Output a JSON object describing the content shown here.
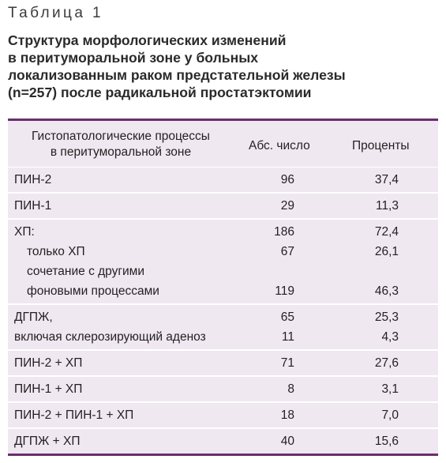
{
  "caption": "Таблица 1",
  "title_lines": [
    "Структура морфологических изменений",
    "в перитуморальной зоне у больных",
    "локализованным раком предстательной железы",
    "(n=257) после радикальной простатэктомии"
  ],
  "table": {
    "headers": {
      "col1_line1": "Гистопатологические процессы",
      "col1_line2": "в перитуморальной зоне",
      "col2": "Абс. число",
      "col3": "Проценты"
    },
    "groups": [
      {
        "rows": [
          {
            "label": "ПИН-2",
            "abs": "96",
            "pct": "37,4",
            "indent": false
          }
        ]
      },
      {
        "rows": [
          {
            "label": "ПИН-1",
            "abs": "29",
            "pct": "11,3",
            "indent": false
          }
        ]
      },
      {
        "rows": [
          {
            "label": "ХП:",
            "abs": "186",
            "pct": "72,4",
            "indent": false
          },
          {
            "label": "только ХП",
            "abs": "67",
            "pct": "26,1",
            "indent": true
          },
          {
            "label": "сочетание с другими",
            "abs": "",
            "pct": "",
            "indent": true
          },
          {
            "label": "фоновыми процессами",
            "abs": "119",
            "pct": "46,3",
            "indent": true
          }
        ]
      },
      {
        "rows": [
          {
            "label": "ДГПЖ,",
            "abs": "65",
            "pct": "25,3",
            "indent": false
          },
          {
            "label": "включая склерозирующий аденоз",
            "abs": "11",
            "pct": "4,3",
            "indent": false
          }
        ]
      },
      {
        "rows": [
          {
            "label": "ПИН-2 + ХП",
            "abs": "71",
            "pct": "27,6",
            "indent": false
          }
        ]
      },
      {
        "rows": [
          {
            "label": "ПИН-1 + ХП",
            "abs": "8",
            "pct": "3,1",
            "indent": false
          }
        ]
      },
      {
        "rows": [
          {
            "label": "ПИН-2 + ПИН-1 + ХП",
            "abs": "18",
            "pct": "7,0",
            "indent": false
          }
        ]
      },
      {
        "rows": [
          {
            "label": "ДГПЖ + ХП",
            "abs": "40",
            "pct": "15,6",
            "indent": false
          }
        ]
      }
    ]
  },
  "colors": {
    "rule": "#6a2e6c",
    "table_bg": "#efe8f1"
  }
}
